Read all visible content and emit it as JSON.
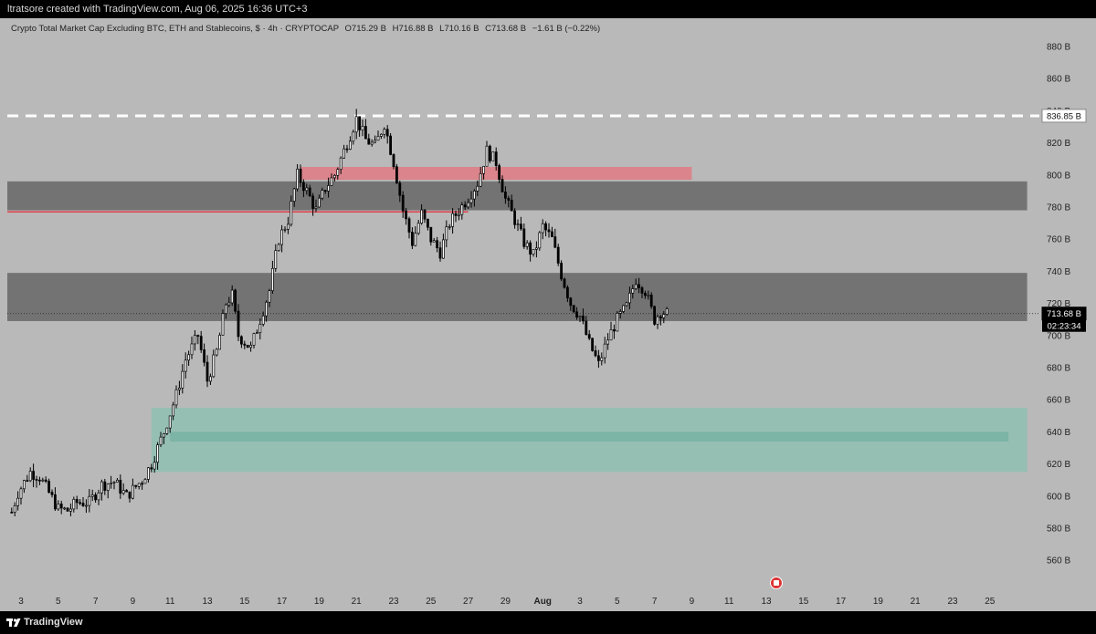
{
  "header": {
    "caption": "ltratsore created with TradingView.com, Aug 06, 2025 16:36 UTC+3"
  },
  "footer": {
    "brand": "TradingView"
  },
  "legend": {
    "symbol": "Crypto Total Market Cap Excluding BTC, ETH and Stablecoins, $ · 4h · CRYPTOCAP",
    "open_label": "O",
    "open": "715.29 B",
    "high_label": "H",
    "high": "716.88 B",
    "low_label": "L",
    "low": "710.16 B",
    "close_label": "C",
    "close": "713.68 B",
    "change": "−1.61 B (−0.22%)"
  },
  "price_tags": {
    "dashed_level": "836.85 B",
    "last_price": "713.68 B",
    "countdown": "02:23:34"
  },
  "colors": {
    "bull": "#ffffff",
    "bear": "#000000",
    "supply_red": "#e07a83",
    "resistance_line": "#e0404a",
    "gray_zone": "#6b6b6b",
    "demand_zone": "#8fbfb3",
    "demand_line": "#78b2a2",
    "dashed": "#ffffff"
  },
  "chart_data": {
    "type": "candlestick",
    "title": "Crypto Total Market Cap Excluding BTC, ETH and Stablecoins",
    "timeframe": "4h",
    "y_unit": "B",
    "ylim": [
      545,
      890
    ],
    "y_ticks": [
      "880 B",
      "860 B",
      "840 B",
      "820 B",
      "800 B",
      "780 B",
      "760 B",
      "740 B",
      "720 B",
      "700 B",
      "680 B",
      "660 B",
      "640 B",
      "620 B",
      "600 B",
      "580 B",
      "560 B"
    ],
    "y_tick_values": [
      880,
      860,
      840,
      820,
      800,
      780,
      760,
      740,
      720,
      700,
      680,
      660,
      640,
      620,
      600,
      580,
      560
    ],
    "x_ticks": [
      "3",
      "5",
      "7",
      "9",
      "11",
      "13",
      "15",
      "17",
      "19",
      "21",
      "23",
      "25",
      "27",
      "29",
      "Aug",
      "3",
      "5",
      "7",
      "9",
      "11",
      "13",
      "15",
      "17",
      "19",
      "21",
      "23",
      "25"
    ],
    "x_range_days": [
      "Jul 2",
      "Aug 26"
    ],
    "series_points": [
      [
        "Jul 2 12:00",
        590
      ],
      [
        "Jul 2 20:00",
        602
      ],
      [
        "Jul 3 12:00",
        615
      ],
      [
        "Jul 4 00:00",
        612
      ],
      [
        "Jul 4 12:00",
        602
      ],
      [
        "Jul 5 00:00",
        592
      ],
      [
        "Jul 5 12:00",
        591
      ],
      [
        "Jul 6 00:00",
        596
      ],
      [
        "Jul 6 16:00",
        596
      ],
      [
        "Jul 7 08:00",
        607
      ],
      [
        "Jul 8 00:00",
        609
      ],
      [
        "Jul 8 16:00",
        600
      ],
      [
        "Jul 9 12:00",
        610
      ],
      [
        "Jul 10 00:00",
        620
      ],
      [
        "Jul 10 16:00",
        640
      ],
      [
        "Jul 11 08:00",
        663
      ],
      [
        "Jul 11 20:00",
        685
      ],
      [
        "Jul 12 12:00",
        700
      ],
      [
        "Jul 13 00:00",
        672
      ],
      [
        "Jul 13 12:00",
        690
      ],
      [
        "Jul 14 00:00",
        720
      ],
      [
        "Jul 14 08:00",
        725
      ],
      [
        "Jul 14 16:00",
        700
      ],
      [
        "Jul 15 00:00",
        696
      ],
      [
        "Jul 15 08:00",
        692
      ],
      [
        "Jul 15 20:00",
        710
      ],
      [
        "Jul 16 08:00",
        728
      ],
      [
        "Jul 16 20:00",
        760
      ],
      [
        "Jul 17 08:00",
        772
      ],
      [
        "Jul 17 20:00",
        800
      ],
      [
        "Jul 18 08:00",
        790
      ],
      [
        "Jul 18 20:00",
        778
      ],
      [
        "Jul 19 08:00",
        792
      ],
      [
        "Jul 19 20:00",
        800
      ],
      [
        "Jul 20 08:00",
        815
      ],
      [
        "Jul 21 00:00",
        835
      ],
      [
        "Jul 21 12:00",
        822
      ],
      [
        "Jul 22 00:00",
        818
      ],
      [
        "Jul 22 12:00",
        832
      ],
      [
        "Jul 23 00:00",
        808
      ],
      [
        "Jul 23 12:00",
        778
      ],
      [
        "Jul 24 00:00",
        758
      ],
      [
        "Jul 24 12:00",
        776
      ],
      [
        "Jul 25 00:00",
        760
      ],
      [
        "Jul 25 12:00",
        752
      ],
      [
        "Jul 26 00:00",
        770
      ],
      [
        "Jul 26 12:00",
        778
      ],
      [
        "Jul 27 00:00",
        786
      ],
      [
        "Jul 27 12:00",
        795
      ],
      [
        "Jul 28 00:00",
        815
      ],
      [
        "Jul 28 12:00",
        808
      ],
      [
        "Jul 29 00:00",
        785
      ],
      [
        "Jul 29 12:00",
        772
      ],
      [
        "Jul 30 00:00",
        758
      ],
      [
        "Jul 30 12:00",
        750
      ],
      [
        "Jul 31 00:00",
        768
      ],
      [
        "Jul 31 12:00",
        760
      ],
      [
        "Aug 1 00:00",
        738
      ],
      [
        "Aug 1 12:00",
        720
      ],
      [
        "Aug 2 00:00",
        712
      ],
      [
        "Aug 2 12:00",
        695
      ],
      [
        "Aug 3 00:00",
        682
      ],
      [
        "Aug 3 12:00",
        698
      ],
      [
        "Aug 4 00:00",
        710
      ],
      [
        "Aug 4 12:00",
        718
      ],
      [
        "Aug 5 00:00",
        735
      ],
      [
        "Aug 5 12:00",
        728
      ],
      [
        "Aug 6 00:00",
        710
      ],
      [
        "Aug 6 08:00",
        715
      ],
      [
        "Aug 6 16:00",
        713.68
      ]
    ],
    "zones": [
      {
        "name": "",
        "type": "supply",
        "from": "Jul 18",
        "to": "Aug 8",
        "low": 797,
        "high": 805
      },
      {
        "name": "",
        "type": "gray",
        "from": "Jul 2",
        "to": "Aug 26",
        "low": 778,
        "high": 796
      },
      {
        "name": "",
        "type": "gray",
        "from": "Jul 2",
        "to": "Aug 26",
        "low": 709,
        "high": 739
      },
      {
        "name": "",
        "type": "demand",
        "from": "Jul 10",
        "to": "Aug 26",
        "low": 615,
        "high": 655
      },
      {
        "name": "",
        "type": "demand-line",
        "from": "Jul 11",
        "to": "Aug 25",
        "low": 634,
        "high": 640
      }
    ],
    "lines": [
      {
        "type": "dashed",
        "value": 836.85
      },
      {
        "type": "resistance",
        "from": "Jul 2",
        "to": "Jul 27",
        "value": 777
      },
      {
        "type": "last-price-dotted",
        "value": 713.68
      }
    ],
    "grid": false
  }
}
